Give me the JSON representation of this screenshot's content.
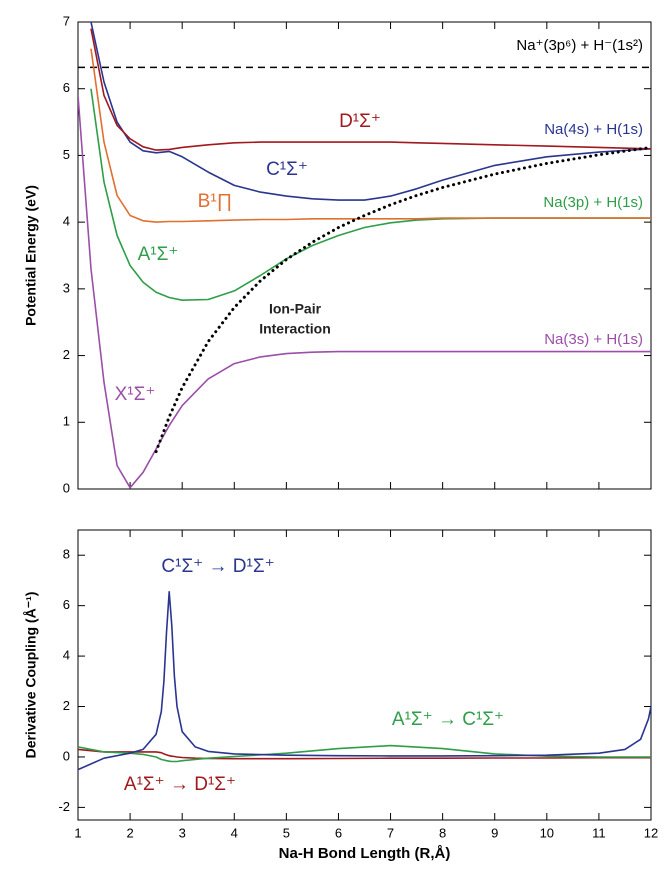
{
  "chart_data": [
    {
      "type": "line",
      "ylabel": "Potential Energy (eV)",
      "xlim": [
        1,
        12
      ],
      "xticks": [
        1,
        2,
        3,
        4,
        5,
        6,
        7,
        8,
        9,
        10,
        11,
        12
      ],
      "ylim": [
        0,
        7
      ],
      "yticks": [
        0,
        1,
        2,
        3,
        4,
        5,
        6,
        7
      ],
      "x": [
        1,
        1.25,
        1.5,
        1.75,
        2,
        2.25,
        2.5,
        2.75,
        3,
        3.5,
        4,
        4.5,
        5,
        5.5,
        6,
        6.5,
        7,
        7.5,
        8,
        9,
        10,
        11,
        12
      ],
      "series": [
        {
          "name": "X¹Σ⁺",
          "color": "#9b4fa8",
          "values": [
            5.9,
            3.3,
            1.6,
            0.35,
            0.02,
            0.25,
            0.6,
            0.95,
            1.25,
            1.65,
            1.88,
            1.98,
            2.03,
            2.05,
            2.06,
            2.06,
            2.06,
            2.06,
            2.06,
            2.06,
            2.06,
            2.06,
            2.06
          ]
        },
        {
          "name": "A¹Σ⁺",
          "color": "#2e9e48",
          "values": [
            null,
            6.0,
            4.6,
            3.8,
            3.35,
            3.1,
            2.95,
            2.87,
            2.83,
            2.84,
            2.97,
            3.2,
            3.45,
            3.65,
            3.8,
            3.92,
            3.99,
            4.03,
            4.05,
            4.06,
            4.06,
            4.06,
            4.06
          ]
        },
        {
          "name": "B¹Π",
          "color": "#e07030",
          "values": [
            null,
            6.6,
            5.2,
            4.4,
            4.1,
            4.02,
            4.0,
            4.01,
            4.01,
            4.02,
            4.03,
            4.04,
            4.04,
            4.05,
            4.05,
            4.05,
            4.05,
            4.05,
            4.06,
            4.06,
            4.06,
            4.06,
            4.06
          ]
        },
        {
          "name": "C¹Σ⁺",
          "color": "#2a3590",
          "values": [
            null,
            7.0,
            6.1,
            5.5,
            5.2,
            5.07,
            5.04,
            5.06,
            4.98,
            4.75,
            4.55,
            4.45,
            4.39,
            4.35,
            4.33,
            4.33,
            4.39,
            4.5,
            4.63,
            4.85,
            4.98,
            5.05,
            5.1
          ]
        },
        {
          "name": "D¹Σ⁺",
          "color": "#a0191e",
          "values": [
            null,
            6.9,
            5.9,
            5.45,
            5.25,
            5.13,
            5.08,
            5.09,
            5.12,
            5.16,
            5.19,
            5.2,
            5.2,
            5.2,
            5.2,
            5.2,
            5.2,
            5.19,
            5.18,
            5.16,
            5.14,
            5.12,
            5.1
          ]
        },
        {
          "name": "Ion-Pair Interaction",
          "color": "#000000",
          "dotted": true,
          "values": [
            null,
            null,
            null,
            null,
            null,
            null,
            0.56,
            1.08,
            1.52,
            2.21,
            2.72,
            3.12,
            3.44,
            3.7,
            3.92,
            4.1,
            4.26,
            4.4,
            4.52,
            4.72,
            4.88,
            5.01,
            5.12
          ]
        }
      ],
      "hline": {
        "value": 6.32,
        "color": "#000000"
      },
      "annotations": [
        {
          "text": "Na⁺(3p⁶) + H⁻(1s²)",
          "color": "#000000"
        },
        {
          "text": "D¹Σ⁺",
          "color": "#a0191e"
        },
        {
          "text": "Na(4s) + H(1s)",
          "color": "#2a3590"
        },
        {
          "text": "C¹Σ⁺",
          "color": "#2a3590"
        },
        {
          "text": "B¹∏",
          "color": "#e07030"
        },
        {
          "text": "Na(3p) + H(1s)",
          "color": "#2e9e48"
        },
        {
          "text": "A¹Σ⁺",
          "color": "#2e9e48"
        },
        {
          "text": "Ion-Pair",
          "color": "#222222"
        },
        {
          "text": "Interaction",
          "color": "#222222"
        },
        {
          "text": "Na(3s) + H(1s)",
          "color": "#9b4fa8"
        },
        {
          "text": "X¹Σ⁺",
          "color": "#9b4fa8"
        }
      ]
    },
    {
      "type": "line",
      "ylabel": "Derivative Coupling (Å⁻¹)",
      "xlabel": "Na-H Bond Length (R,Å)",
      "xlim": [
        1,
        12
      ],
      "xticks": [
        1,
        2,
        3,
        4,
        5,
        6,
        7,
        8,
        9,
        10,
        11,
        12
      ],
      "ylim": [
        -2.5,
        9
      ],
      "yticks": [
        -2,
        0,
        2,
        4,
        6,
        8
      ],
      "x": [
        1,
        1.5,
        2,
        2.25,
        2.5,
        2.6,
        2.65,
        2.7,
        2.75,
        2.8,
        2.85,
        2.9,
        3,
        3.25,
        3.5,
        4,
        5,
        6,
        7,
        8,
        9,
        10,
        11,
        11.5,
        11.8,
        11.95,
        12
      ],
      "series": [
        {
          "name": "A¹Σ⁺ → D¹Σ⁺",
          "color": "#a0191e",
          "values": [
            0.3,
            0.2,
            0.2,
            0.2,
            0.2,
            0.17,
            0.12,
            0.08,
            0.05,
            0.03,
            0.02,
            0.0,
            -0.02,
            -0.05,
            -0.06,
            -0.07,
            -0.07,
            -0.06,
            -0.05,
            -0.05,
            -0.04,
            -0.04,
            -0.03,
            -0.03,
            -0.03,
            -0.03,
            -0.03
          ]
        },
        {
          "name": "A¹Σ⁺ → C¹Σ⁺",
          "color": "#2e9e48",
          "values": [
            0.4,
            0.2,
            0.15,
            0.1,
            0.0,
            -0.1,
            -0.12,
            -0.15,
            -0.17,
            -0.18,
            -0.18,
            -0.18,
            -0.15,
            -0.1,
            -0.05,
            0.02,
            0.15,
            0.33,
            0.45,
            0.33,
            0.12,
            0.03,
            0.0,
            0.0,
            0.0,
            0.0,
            0.0
          ]
        },
        {
          "name": "C¹Σ⁺ → D¹Σ⁺",
          "color": "#2a3590",
          "values": [
            -0.5,
            -0.05,
            0.15,
            0.3,
            0.9,
            1.8,
            3.0,
            5.0,
            6.55,
            5.2,
            3.2,
            2.0,
            1.0,
            0.4,
            0.22,
            0.12,
            0.07,
            0.05,
            0.04,
            0.04,
            0.05,
            0.07,
            0.15,
            0.3,
            0.7,
            1.5,
            2.0
          ]
        }
      ]
    }
  ]
}
